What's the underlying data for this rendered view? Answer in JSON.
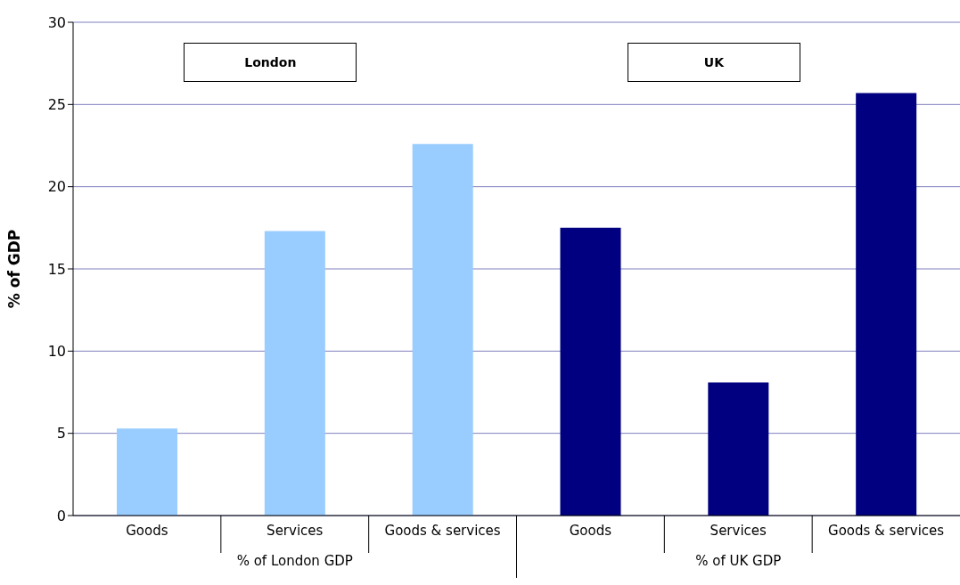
{
  "chart_data": {
    "type": "bar",
    "ylabel": "% of GDP",
    "categories": [
      "Goods",
      "Services",
      "Goods & services",
      "Goods",
      "Services",
      "Goods & services"
    ],
    "values": [
      5.3,
      17.3,
      22.6,
      17.5,
      8.1,
      25.7
    ],
    "colors": [
      "#99ccff",
      "#99ccff",
      "#99ccff",
      "#000080",
      "#000080",
      "#000080"
    ],
    "ylim": [
      0,
      30
    ],
    "yticks": [
      0,
      5,
      10,
      15,
      20,
      25,
      30
    ],
    "grid": "y",
    "annotations": [
      "London",
      "UK",
      "% of London GDP",
      "% of UK GDP"
    ]
  }
}
